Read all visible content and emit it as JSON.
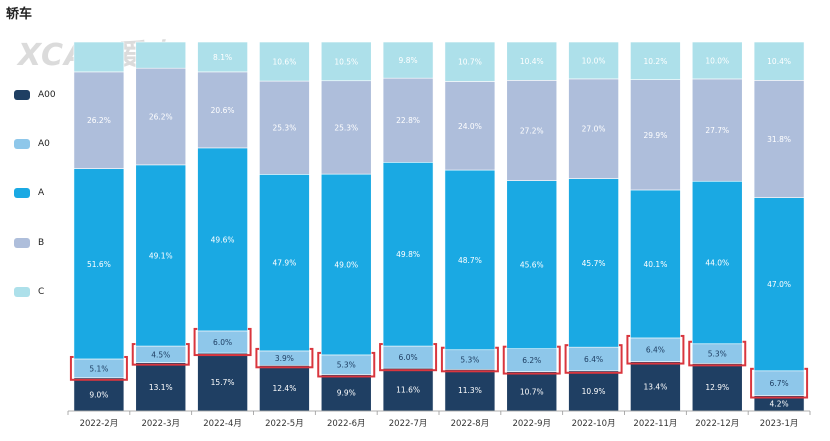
{
  "header": {
    "title": "轿车",
    "watermark": "XCAR爱卡"
  },
  "chart_data": {
    "type": "bar",
    "stacked": true,
    "percent": true,
    "title": "轿车",
    "categories": [
      "2022-2月",
      "2022-3月",
      "2022-4月",
      "2022-5月",
      "2022-6月",
      "2022-7月",
      "2022-8月",
      "2022-9月",
      "2022-10月",
      "2022-11月",
      "2022-12月",
      "2023-1月"
    ],
    "series": [
      {
        "name": "A00",
        "color": "#1f3f63",
        "values": [
          9.0,
          13.1,
          15.7,
          12.4,
          9.9,
          11.6,
          11.3,
          10.7,
          10.9,
          13.4,
          12.9,
          4.2
        ],
        "label_color": "#ffffff"
      },
      {
        "name": "A0",
        "color": "#8ec7ea",
        "values": [
          5.1,
          4.5,
          6.0,
          3.9,
          5.3,
          6.0,
          5.3,
          6.2,
          6.4,
          6.4,
          5.3,
          6.7
        ],
        "label_color": "#1f3f63"
      },
      {
        "name": "A",
        "color": "#1aa9e3",
        "values": [
          51.6,
          49.1,
          49.6,
          47.9,
          49.0,
          49.8,
          48.7,
          45.6,
          45.7,
          40.1,
          44.0,
          47.0
        ],
        "label_color": "#ffffff"
      },
      {
        "name": "B",
        "color": "#aebedb",
        "values": [
          26.2,
          26.2,
          20.6,
          25.3,
          25.3,
          22.8,
          24.0,
          27.2,
          27.0,
          29.9,
          27.7,
          31.8
        ],
        "label_color": "#ffffff"
      },
      {
        "name": "C",
        "color": "#ade0ea",
        "values": [
          8.1,
          7.1,
          8.1,
          10.6,
          10.5,
          9.8,
          10.7,
          10.4,
          10.0,
          10.2,
          10.0,
          10.4
        ],
        "label_color": "#ffffff"
      }
    ],
    "value_labels": {
      "A00": [
        "9.0%",
        "13.1%",
        "15.7%",
        "12.4%",
        "9.9%",
        "11.6%",
        "11.3%",
        "10.7%",
        "10.9%",
        "13.4%",
        "12.9%",
        "4.2%"
      ],
      "A0": [
        "5.1%",
        "4.5%",
        "6.0%",
        "3.9%",
        "5.3%",
        "6.0%",
        "5.3%",
        "6.2%",
        "6.4%",
        "6.4%",
        "5.3%",
        "6.7%"
      ],
      "A": [
        "51.6%",
        "49.1%",
        "49.6%",
        "47.9%",
        "49.0%",
        "49.8%",
        "48.7%",
        "45.6%",
        "45.7%",
        "40.1%",
        "44.0%",
        "47.0%"
      ],
      "B": [
        "26.2%",
        "26.2%",
        "20.6%",
        "25.3%",
        "25.3%",
        "22.8%",
        "24.0%",
        "27.2%",
        "27.0%",
        "29.9%",
        "27.7%",
        "31.8%"
      ],
      "C": [
        "",
        "",
        "8.1%",
        "10.6%",
        "10.5%",
        "9.8%",
        "10.7%",
        "10.4%",
        "10.0%",
        "10.2%",
        "10.0%",
        "10.4%"
      ]
    },
    "highlighted_series": "A0",
    "highlight_color": "#d9363e",
    "ylim": [
      0,
      100
    ],
    "legend_position": "left"
  }
}
